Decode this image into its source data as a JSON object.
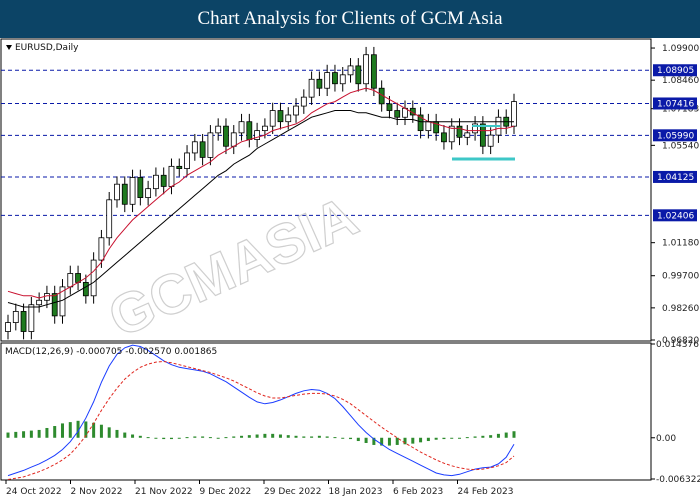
{
  "header": {
    "title": "Chart Analysis for Clients of GCM Asia"
  },
  "chart_data": [
    {
      "type": "line",
      "panel": "price",
      "symbol_label": "EURUSD,Daily",
      "y_ticks": [
        "1.09900",
        "1.08460",
        "1.07183",
        "1.05540",
        "1.01180",
        "0.99700",
        "0.98260",
        "0.96820"
      ],
      "ylim": [
        0.9682,
        1.1026
      ],
      "x_labels": [
        "24 Oct 2022",
        "2 Nov 2022",
        "21 Nov 2022",
        "9 Dec 2022",
        "29 Dec 2022",
        "18 Jan 2023",
        "6 Feb 2023",
        "24 Feb 2023"
      ],
      "levels": [
        {
          "label": "1.08905",
          "value": 1.08905
        },
        {
          "label": "1.07416",
          "value": 1.07416
        },
        {
          "label": "1.05990",
          "value": 1.0599
        },
        {
          "label": "1.04125",
          "value": 1.04125
        },
        {
          "label": "1.02406",
          "value": 1.02406
        }
      ],
      "current_price": {
        "label": "1.07416",
        "value": 1.07416
      },
      "close_series": [
        0.976,
        0.981,
        0.972,
        0.984,
        0.986,
        0.989,
        0.979,
        0.992,
        0.998,
        0.994,
        0.988,
        1.004,
        1.014,
        1.031,
        1.038,
        1.029,
        1.041,
        1.032,
        1.036,
        1.042,
        1.037,
        1.046,
        1.045,
        1.052,
        1.057,
        1.05,
        1.061,
        1.064,
        1.055,
        1.061,
        1.066,
        1.058,
        1.062,
        1.064,
        1.071,
        1.066,
        1.069,
        1.073,
        1.077,
        1.085,
        1.081,
        1.088,
        1.083,
        1.087,
        1.091,
        1.083,
        1.096,
        1.081,
        1.074,
        1.071,
        1.068,
        1.072,
        1.069,
        1.062,
        1.066,
        1.061,
        1.057,
        1.064,
        1.059,
        1.061,
        1.065,
        1.055,
        1.06,
        1.068,
        1.064,
        1.075
      ],
      "ma_fast": [
        0.99,
        0.989,
        0.988,
        0.988,
        0.987,
        0.988,
        0.988,
        0.99,
        0.992,
        0.994,
        0.996,
        0.999,
        1.003,
        1.009,
        1.014,
        1.018,
        1.022,
        1.025,
        1.028,
        1.031,
        1.034,
        1.037,
        1.039,
        1.042,
        1.044,
        1.046,
        1.048,
        1.051,
        1.053,
        1.055,
        1.057,
        1.058,
        1.059,
        1.06,
        1.062,
        1.063,
        1.064,
        1.065,
        1.067,
        1.07,
        1.072,
        1.074,
        1.075,
        1.077,
        1.079,
        1.08,
        1.081,
        1.08,
        1.078,
        1.076,
        1.074,
        1.072,
        1.07,
        1.068,
        1.066,
        1.065,
        1.064,
        1.063,
        1.063,
        1.062,
        1.062,
        1.062,
        1.062,
        1.063,
        1.063,
        1.064
      ],
      "ma_slow": [
        0.985,
        0.984,
        0.983,
        0.983,
        0.983,
        0.984,
        0.985,
        0.986,
        0.988,
        0.99,
        0.992,
        0.994,
        0.997,
        1.0,
        1.003,
        1.006,
        1.009,
        1.012,
        1.015,
        1.018,
        1.021,
        1.024,
        1.027,
        1.03,
        1.033,
        1.036,
        1.039,
        1.042,
        1.044,
        1.047,
        1.049,
        1.051,
        1.054,
        1.056,
        1.058,
        1.06,
        1.062,
        1.064,
        1.066,
        1.068,
        1.069,
        1.07,
        1.071,
        1.071,
        1.071,
        1.07,
        1.07,
        1.069,
        1.068,
        1.068,
        1.067,
        1.067,
        1.067,
        1.066,
        1.066,
        1.066,
        1.066,
        1.066,
        1.066,
        1.066,
        1.066,
        1.066,
        1.066,
        1.066,
        1.066,
        1.066
      ]
    },
    {
      "type": "bar",
      "panel": "macd",
      "indicator_label": "MACD(12,26,9) -0.000705 -0.002570 0.001865",
      "y_ticks": [
        "0.014376",
        "0.00",
        "-0.006322"
      ],
      "ylim": [
        -0.006322,
        0.014376
      ],
      "histogram": [
        0.0008,
        0.0009,
        0.001,
        0.0011,
        0.0012,
        0.0015,
        0.0018,
        0.0022,
        0.0024,
        0.0026,
        0.0025,
        0.0023,
        0.002,
        0.0016,
        0.0012,
        0.0008,
        0.0005,
        0.0003,
        0.0001,
        -0.0001,
        -0.0002,
        -0.0002,
        -0.0001,
        0.0001,
        0.0002,
        0.0002,
        0.0001,
        0.0,
        0.0001,
        0.0002,
        0.0003,
        0.0004,
        0.0005,
        0.0006,
        0.0006,
        0.0005,
        0.0004,
        0.0003,
        0.0002,
        0.0002,
        0.0003,
        0.0002,
        0.0001,
        0.0,
        -0.0002,
        -0.0005,
        -0.0008,
        -0.0011,
        -0.0012,
        -0.0012,
        -0.0011,
        -0.001,
        -0.0009,
        -0.0007,
        -0.0005,
        -0.0003,
        -0.0002,
        -0.0001,
        0.0,
        0.0001,
        0.0002,
        0.0003,
        0.0004,
        0.0006,
        0.0008,
        0.001
      ],
      "macd_line": [
        -0.0058,
        -0.0054,
        -0.005,
        -0.0045,
        -0.004,
        -0.0034,
        -0.0027,
        -0.0018,
        -0.0006,
        0.001,
        0.003,
        0.0055,
        0.0085,
        0.011,
        0.0128,
        0.0138,
        0.0142,
        0.014,
        0.0134,
        0.0126,
        0.0118,
        0.0112,
        0.0108,
        0.0106,
        0.0104,
        0.0102,
        0.0098,
        0.0092,
        0.0086,
        0.0078,
        0.007,
        0.0062,
        0.0055,
        0.0052,
        0.0054,
        0.0058,
        0.0063,
        0.0068,
        0.0072,
        0.0074,
        0.0073,
        0.0068,
        0.006,
        0.0048,
        0.0034,
        0.002,
        0.0008,
        -0.0002,
        -0.001,
        -0.0018,
        -0.0024,
        -0.003,
        -0.0036,
        -0.0042,
        -0.0048,
        -0.0054,
        -0.0057,
        -0.0058,
        -0.0056,
        -0.0052,
        -0.0048,
        -0.0046,
        -0.0045,
        -0.004,
        -0.003,
        -0.001
      ],
      "signal_line": [
        -0.0064,
        -0.0062,
        -0.006,
        -0.0056,
        -0.0052,
        -0.0047,
        -0.0041,
        -0.0034,
        -0.0025,
        -0.0012,
        0.0003,
        0.0022,
        0.0042,
        0.006,
        0.0076,
        0.009,
        0.01,
        0.0108,
        0.0113,
        0.0116,
        0.0117,
        0.0115,
        0.0112,
        0.0109,
        0.0106,
        0.0103,
        0.01,
        0.0096,
        0.0092,
        0.0087,
        0.0081,
        0.0075,
        0.0069,
        0.0064,
        0.0061,
        0.0061,
        0.0063,
        0.0065,
        0.0067,
        0.0068,
        0.0068,
        0.0067,
        0.0064,
        0.0059,
        0.0052,
        0.0043,
        0.0034,
        0.0025,
        0.0016,
        0.0008,
        0.0,
        -0.0008,
        -0.0015,
        -0.0022,
        -0.0028,
        -0.0034,
        -0.0039,
        -0.0043,
        -0.0046,
        -0.0048,
        -0.0049,
        -0.0048,
        -0.0046,
        -0.0043,
        -0.0038,
        -0.0028
      ]
    }
  ],
  "watermark": {
    "text": "GCMASIA"
  }
}
